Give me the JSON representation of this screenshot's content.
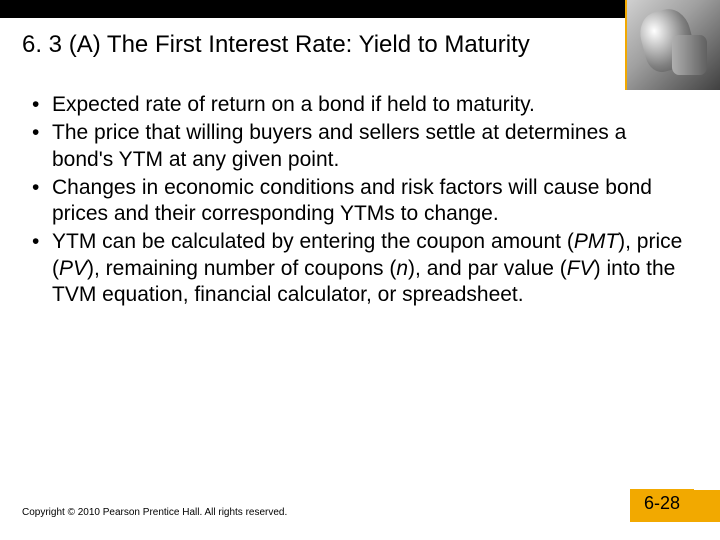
{
  "colors": {
    "topbar": "#000000",
    "accent": "#f2a900",
    "background": "#ffffff",
    "text": "#000000"
  },
  "typography": {
    "title_fontsize": 24,
    "body_fontsize": 21,
    "footer_fontsize": 10,
    "pagenum_fontsize": 18,
    "font_family": "Arial"
  },
  "title": "6. 3 (A)  The First Interest Rate: Yield to Maturity",
  "bullets": [
    "Expected rate of return on a bond if held to maturity.",
    "The price that willing buyers and sellers settle at determines a bond's YTM at any given point.",
    "Changes in economic conditions and risk factors will cause bond prices and their corresponding YTMs to change.",
    "YTM can be calculated by entering the coupon amount (PMT), price (PV), remaining number of coupons (n), and par value (FV) into the TVM equation, financial calculator, or spreadsheet."
  ],
  "footer": {
    "copyright": "Copyright © 2010 Pearson Prentice Hall. All rights reserved.",
    "pagenum": "6-28"
  }
}
